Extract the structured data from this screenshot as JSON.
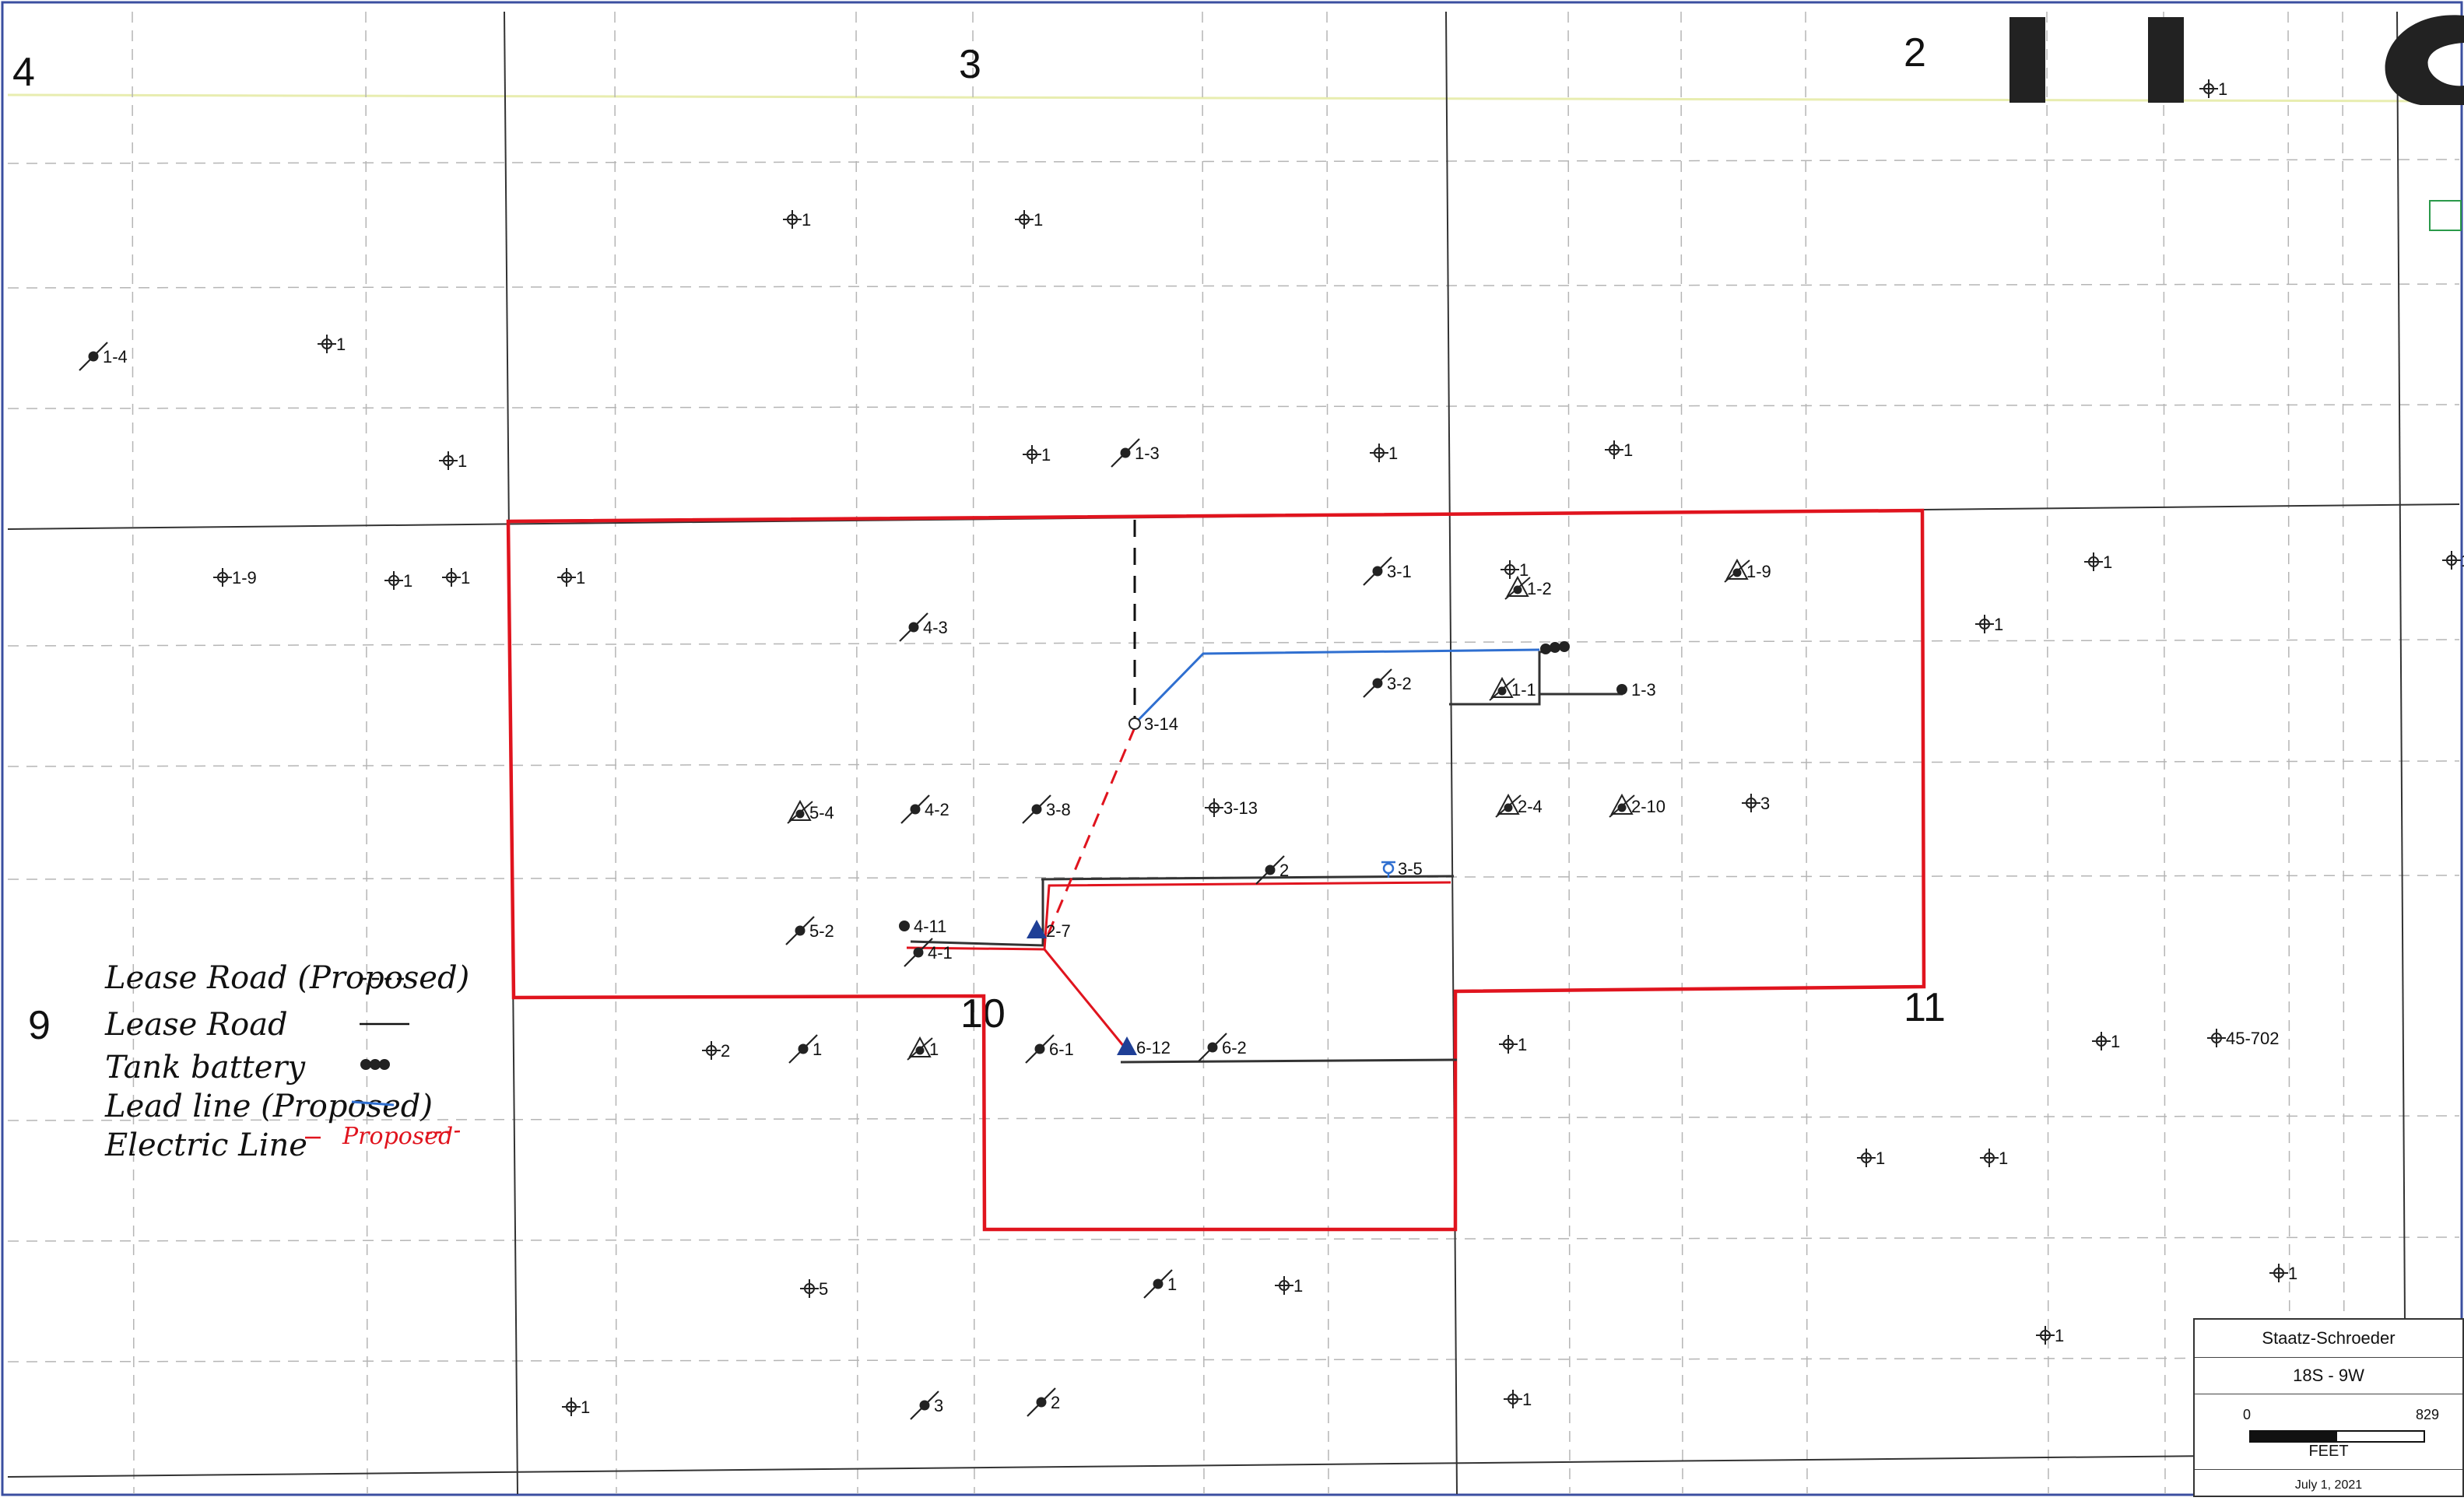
{
  "sections": [
    {
      "label": "4"
    },
    {
      "label": "3"
    },
    {
      "label": "2"
    },
    {
      "label": "9"
    },
    {
      "label": "10"
    },
    {
      "label": "11"
    }
  ],
  "wells": [
    {
      "label": "1-4",
      "type": "plugged"
    },
    {
      "label": "1",
      "type": "dry"
    },
    {
      "label": "1",
      "type": "dry"
    },
    {
      "label": "1",
      "type": "dry"
    },
    {
      "label": "1",
      "type": "dry"
    },
    {
      "label": "1",
      "type": "dry"
    },
    {
      "label": "1-3",
      "type": "plugged"
    },
    {
      "label": "1",
      "type": "dry"
    },
    {
      "label": "1",
      "type": "dry"
    },
    {
      "label": "1-9",
      "type": "dry"
    },
    {
      "label": "1",
      "type": "dry"
    },
    {
      "label": "1",
      "type": "dry"
    },
    {
      "label": "1",
      "type": "dry"
    },
    {
      "label": "4-3",
      "type": "plugged"
    },
    {
      "label": "3-1",
      "type": "plugged"
    },
    {
      "label": "1",
      "type": "dry"
    },
    {
      "label": "1-2",
      "type": "plugged-gas"
    },
    {
      "label": "1-9",
      "type": "plugged-gas"
    },
    {
      "label": "1",
      "type": "dry"
    },
    {
      "label": "1",
      "type": "dry"
    },
    {
      "label": "3-2",
      "type": "plugged"
    },
    {
      "label": "1-1",
      "type": "plugged-gas"
    },
    {
      "label": "1-3",
      "type": "oil"
    },
    {
      "label": "3-14",
      "type": "location"
    },
    {
      "label": "5-4",
      "type": "plugged-gas"
    },
    {
      "label": "4-2",
      "type": "plugged"
    },
    {
      "label": "3-8",
      "type": "plugged"
    },
    {
      "label": "3-13",
      "type": "dry"
    },
    {
      "label": "2-4",
      "type": "plugged-gas"
    },
    {
      "label": "2-10",
      "type": "plugged-gas"
    },
    {
      "label": "3",
      "type": "dry"
    },
    {
      "label": "2",
      "type": "plugged"
    },
    {
      "label": "3-5",
      "type": "injection"
    },
    {
      "label": "5-2",
      "type": "plugged"
    },
    {
      "label": "4-11",
      "type": "oil"
    },
    {
      "label": "4-1",
      "type": "plugged"
    },
    {
      "label": "2-7",
      "type": "triangle"
    },
    {
      "label": "2",
      "type": "dry"
    },
    {
      "label": "1",
      "type": "plugged"
    },
    {
      "label": "1",
      "type": "plugged-gas"
    },
    {
      "label": "6-1",
      "type": "plugged"
    },
    {
      "label": "6-12",
      "type": "triangle"
    },
    {
      "label": "6-2",
      "type": "plugged"
    },
    {
      "label": "1",
      "type": "dry"
    },
    {
      "label": "1",
      "type": "dry"
    },
    {
      "label": "45-702",
      "type": "dry"
    },
    {
      "label": "1",
      "type": "dry"
    },
    {
      "label": "1",
      "type": "dry"
    },
    {
      "label": "5",
      "type": "dry"
    },
    {
      "label": "1",
      "type": "plugged"
    },
    {
      "label": "1",
      "type": "dry"
    },
    {
      "label": "1",
      "type": "dry"
    },
    {
      "label": "1",
      "type": "dry"
    },
    {
      "label": "1",
      "type": "dry"
    },
    {
      "label": "3",
      "type": "plugged"
    },
    {
      "label": "2",
      "type": "plugged"
    },
    {
      "label": "1",
      "type": "dry"
    },
    {
      "label": "1",
      "type": "dry"
    },
    {
      "label": "1",
      "type": "dry"
    }
  ],
  "legend": {
    "lease_road_proposed": "Lease Road (Proposed)",
    "lease_road": "Lease Road",
    "tank_battery": "Tank battery",
    "lead_line_proposed": "Lead line (Proposed)",
    "electric_line": "Electric Line",
    "proposed": "Proposed"
  },
  "title_block": {
    "name": "Staatz-Schroeder",
    "township": "18S - 9W",
    "scale_min": "0",
    "scale_max": "829",
    "scale_unit": "FEET",
    "date": "July 1, 2021"
  },
  "colors": {
    "boundary": "#e0141e",
    "lead_line": "#2f6fd0",
    "triangle": "#1f3f96",
    "section_line": "#333333",
    "grid": "#b5b5b5"
  }
}
